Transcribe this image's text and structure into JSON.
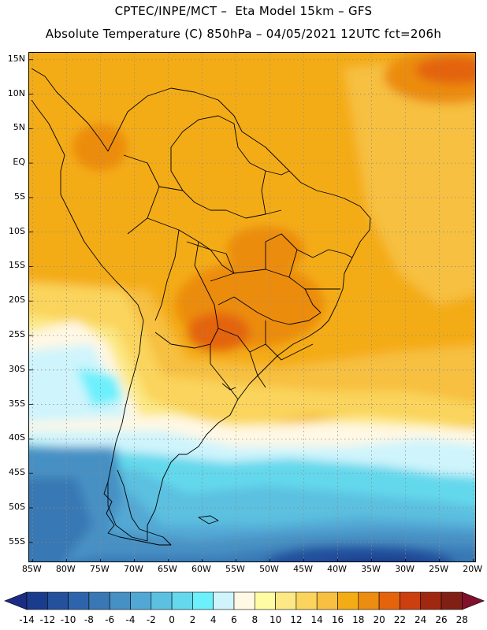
{
  "header": {
    "line1": "CPTEC/INPE/MCT –  Eta Model 15km – GFS",
    "line2": "Absolute Temperature (C) 850hPa – 04/05/2021 12UTC fct=206h"
  },
  "map": {
    "region": "South America",
    "lat_range": [
      -58,
      16
    ],
    "lon_range": [
      -85.5,
      -19.5
    ],
    "lat_labels": [
      "15N",
      "10N",
      "5N",
      "EQ",
      "5S",
      "10S",
      "15S",
      "20S",
      "25S",
      "30S",
      "35S",
      "40S",
      "45S",
      "50S",
      "55S"
    ],
    "lat_values": [
      15,
      10,
      5,
      0,
      -5,
      -10,
      -15,
      -20,
      -25,
      -30,
      -35,
      -40,
      -45,
      -50,
      -55
    ],
    "lon_labels": [
      "85W",
      "80W",
      "75W",
      "70W",
      "65W",
      "60W",
      "55W",
      "50W",
      "45W",
      "40W",
      "35W",
      "30W",
      "25W",
      "20W"
    ],
    "lon_values": [
      -85,
      -80,
      -75,
      -70,
      -65,
      -60,
      -55,
      -50,
      -45,
      -40,
      -35,
      -30,
      -25,
      -20
    ]
  },
  "colorbar": {
    "labels": [
      "-14",
      "-12",
      "-10",
      "-8",
      "-6",
      "-4",
      "-2",
      "0",
      "2",
      "4",
      "6",
      "8",
      "10",
      "12",
      "14",
      "16",
      "18",
      "20",
      "22",
      "24",
      "26",
      "28"
    ],
    "colors": [
      "#1a3c8c",
      "#24509c",
      "#2e64ac",
      "#3978b4",
      "#4690c4",
      "#52a8d4",
      "#5cc0e0",
      "#64d8ec",
      "#6cf0fc",
      "#cff4fc",
      "#fff8e4",
      "#fffca4",
      "#fce884",
      "#fad45c",
      "#f7c040",
      "#f4ac14",
      "#ec8c10",
      "#e4640c",
      "#cc4010",
      "#a02810",
      "#802014"
    ],
    "end_low_color": "#1c2c84",
    "end_high_color": "#80102c"
  }
}
